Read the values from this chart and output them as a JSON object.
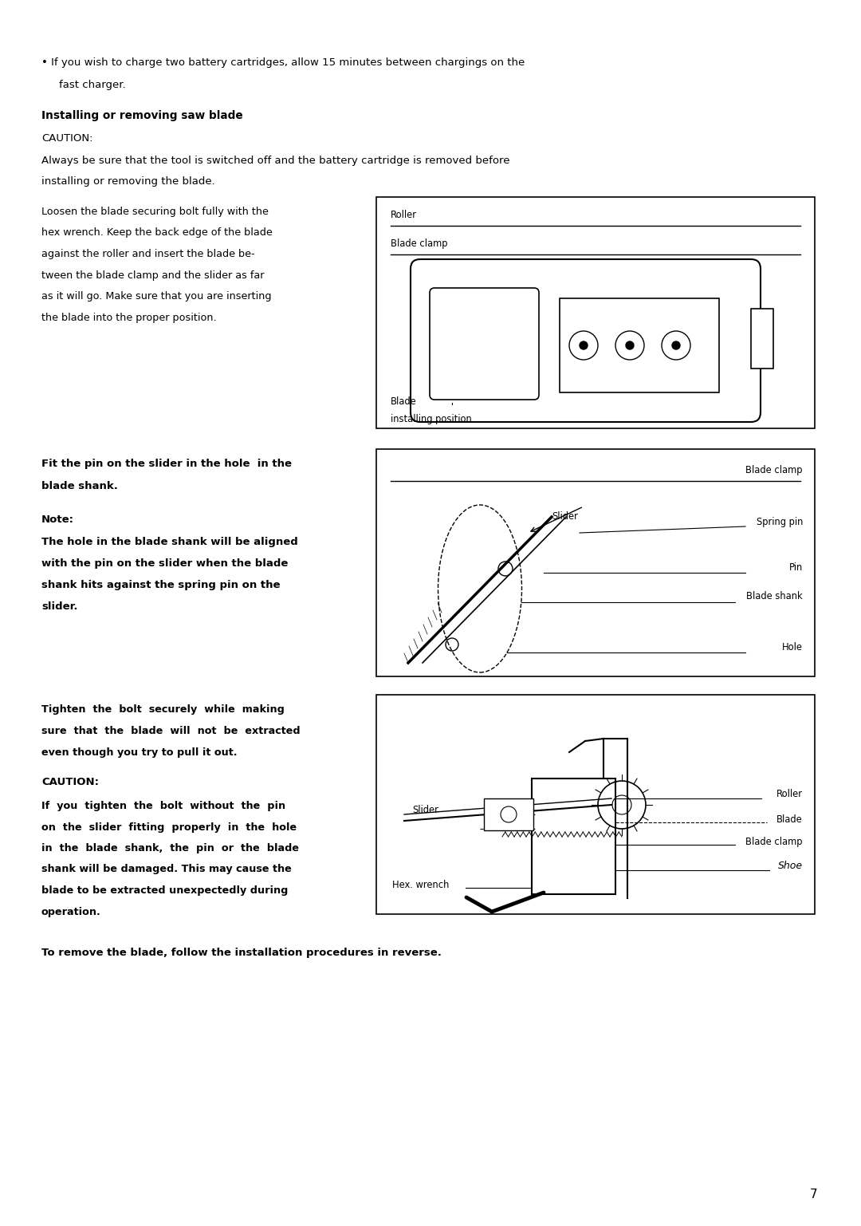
{
  "bg_color": "#ffffff",
  "page_width": 10.8,
  "page_height": 15.37,
  "text_color": "#000000",
  "page_number": "7"
}
